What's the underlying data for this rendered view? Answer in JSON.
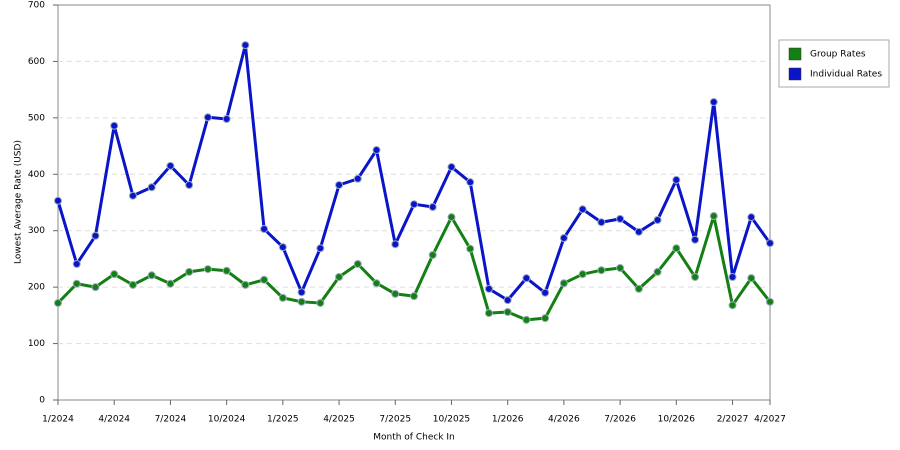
{
  "chart_data": {
    "type": "line",
    "x_label": "Month of Check In",
    "y_label": "Lowest Average Rate (USD)",
    "categories": [
      "1/2024",
      null,
      null,
      "4/2024",
      null,
      null,
      "7/2024",
      null,
      null,
      "10/2024",
      null,
      null,
      "1/2025",
      null,
      null,
      "4/2025",
      null,
      null,
      "7/2025",
      null,
      null,
      "10/2025",
      null,
      null,
      "1/2026",
      null,
      null,
      "4/2026",
      null,
      null,
      "7/2026",
      null,
      null,
      "10/2026",
      null,
      null,
      "2/2027",
      null,
      "4/2027"
    ],
    "series": [
      {
        "name": "Group Rates",
        "color": "#138013",
        "values": [
          172,
          206,
          200,
          223,
          204,
          221,
          206,
          227,
          232,
          229,
          204,
          213,
          181,
          174,
          172,
          218,
          241,
          207,
          188,
          184,
          257,
          324,
          268,
          154,
          156,
          142,
          145,
          207,
          223,
          230,
          234,
          197,
          227,
          269,
          218,
          326,
          168,
          216,
          174
        ]
      },
      {
        "name": "Individual Rates",
        "color": "#0a14c8",
        "values": [
          353,
          241,
          291,
          486,
          362,
          377,
          415,
          381,
          501,
          498,
          629,
          303,
          271,
          191,
          269,
          381,
          392,
          443,
          276,
          347,
          342,
          413,
          386,
          197,
          177,
          216,
          190,
          287,
          338,
          315,
          321,
          298,
          319,
          390,
          284,
          528,
          218,
          324,
          278
        ]
      }
    ],
    "ylim": [
      0,
      700
    ],
    "yticks": [
      0,
      100,
      200,
      300,
      400,
      500,
      600,
      700
    ],
    "grid": true,
    "legend": "right"
  }
}
